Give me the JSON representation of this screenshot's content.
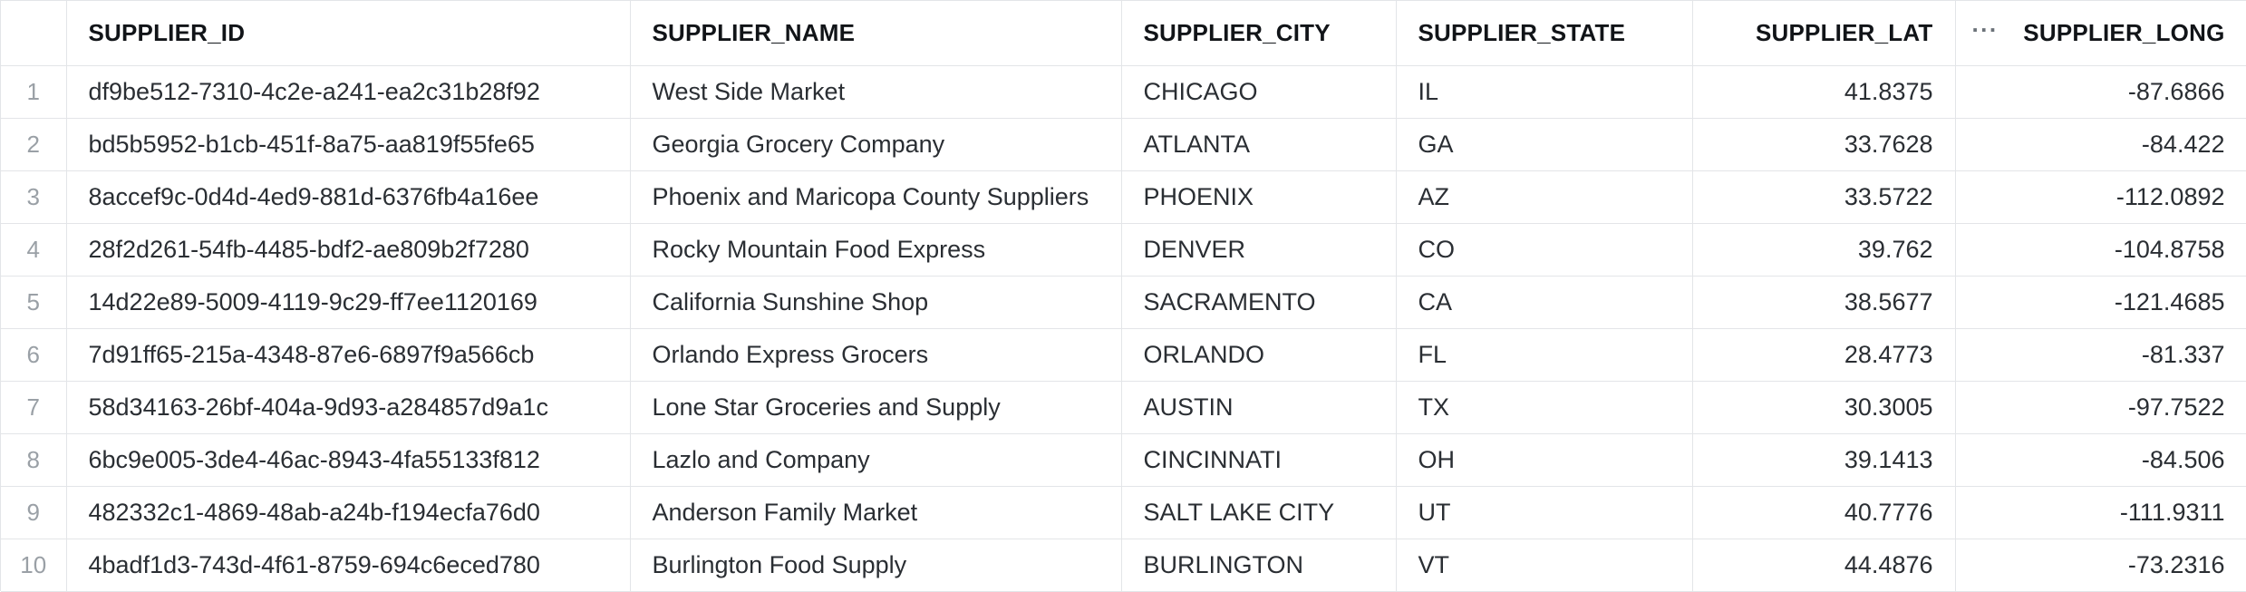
{
  "table": {
    "columns": [
      {
        "key": "idx",
        "label": ""
      },
      {
        "key": "supplier_id",
        "label": "SUPPLIER_ID"
      },
      {
        "key": "supplier_name",
        "label": "SUPPLIER_NAME"
      },
      {
        "key": "supplier_city",
        "label": "SUPPLIER_CITY"
      },
      {
        "key": "supplier_state",
        "label": "SUPPLIER_STATE"
      },
      {
        "key": "supplier_lat",
        "label": "SUPPLIER_LAT"
      },
      {
        "key": "supplier_long",
        "label": "SUPPLIER_LONG"
      }
    ],
    "more_icon": "more-horizontal-icon",
    "more_glyph": "···",
    "rows": [
      {
        "idx": "1",
        "supplier_id": "df9be512-7310-4c2e-a241-ea2c31b28f92",
        "supplier_name": "West Side Market",
        "supplier_city": "CHICAGO",
        "supplier_state": "IL",
        "supplier_lat": "41.8375",
        "supplier_long": "-87.6866"
      },
      {
        "idx": "2",
        "supplier_id": "bd5b5952-b1cb-451f-8a75-aa819f55fe65",
        "supplier_name": "Georgia Grocery Company",
        "supplier_city": "ATLANTA",
        "supplier_state": "GA",
        "supplier_lat": "33.7628",
        "supplier_long": "-84.422"
      },
      {
        "idx": "3",
        "supplier_id": "8accef9c-0d4d-4ed9-881d-6376fb4a16ee",
        "supplier_name": "Phoenix and Maricopa County Suppliers",
        "supplier_city": "PHOENIX",
        "supplier_state": "AZ",
        "supplier_lat": "33.5722",
        "supplier_long": "-112.0892"
      },
      {
        "idx": "4",
        "supplier_id": "28f2d261-54fb-4485-bdf2-ae809b2f7280",
        "supplier_name": "Rocky Mountain Food Express",
        "supplier_city": "DENVER",
        "supplier_state": "CO",
        "supplier_lat": "39.762",
        "supplier_long": "-104.8758"
      },
      {
        "idx": "5",
        "supplier_id": "14d22e89-5009-4119-9c29-ff7ee1120169",
        "supplier_name": "California Sunshine Shop",
        "supplier_city": "SACRAMENTO",
        "supplier_state": "CA",
        "supplier_lat": "38.5677",
        "supplier_long": "-121.4685"
      },
      {
        "idx": "6",
        "supplier_id": "7d91ff65-215a-4348-87e6-6897f9a566cb",
        "supplier_name": "Orlando Express Grocers",
        "supplier_city": "ORLANDO",
        "supplier_state": "FL",
        "supplier_lat": "28.4773",
        "supplier_long": "-81.337"
      },
      {
        "idx": "7",
        "supplier_id": "58d34163-26bf-404a-9d93-a284857d9a1c",
        "supplier_name": "Lone Star Groceries and Supply",
        "supplier_city": "AUSTIN",
        "supplier_state": "TX",
        "supplier_lat": "30.3005",
        "supplier_long": "-97.7522"
      },
      {
        "idx": "8",
        "supplier_id": "6bc9e005-3de4-46ac-8943-4fa55133f812",
        "supplier_name": "Lazlo and Company",
        "supplier_city": "CINCINNATI",
        "supplier_state": "OH",
        "supplier_lat": "39.1413",
        "supplier_long": "-84.506"
      },
      {
        "idx": "9",
        "supplier_id": "482332c1-4869-48ab-a24b-f194ecfa76d0",
        "supplier_name": "Anderson Family Market",
        "supplier_city": "SALT LAKE CITY",
        "supplier_state": "UT",
        "supplier_lat": "40.7776",
        "supplier_long": "-111.9311"
      },
      {
        "idx": "10",
        "supplier_id": "4badf1d3-743d-4f61-8759-694c6eced780",
        "supplier_name": "Burlington Food Supply",
        "supplier_city": "BURLINGTON",
        "supplier_state": "VT",
        "supplier_lat": "44.4876",
        "supplier_long": "-73.2316"
      }
    ]
  }
}
